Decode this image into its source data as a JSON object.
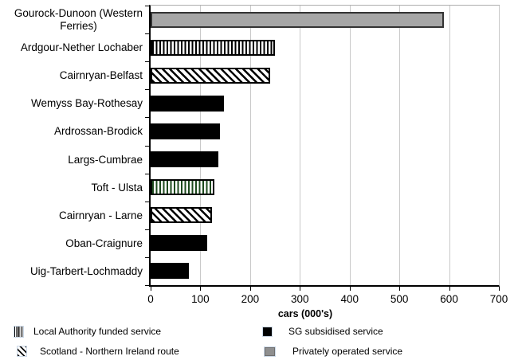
{
  "chart_data": {
    "type": "bar",
    "orientation": "horizontal",
    "title": "",
    "xlabel": "cars (000's)",
    "ylabel": "",
    "xlim": [
      0,
      700
    ],
    "xticks": [
      0,
      100,
      200,
      300,
      400,
      500,
      600,
      700
    ],
    "grid": true,
    "legend_position": "bottom",
    "categories": [
      "Gourock-Dunoon (Western\nFerries)",
      "Ardgour-Nether Lochaber",
      "Cairnryan-Belfast",
      "Wemyss Bay-Rothesay",
      "Ardrossan-Brodick",
      "Largs-Cumbrae",
      "Toft - Ulsta",
      "Cairnryan - Larne",
      "Oban-Craignure",
      "Uig-Tarbert-Lochmaddy"
    ],
    "values": [
      590,
      250,
      240,
      148,
      140,
      136,
      128,
      123,
      114,
      77
    ],
    "bar_styles": [
      "gray",
      "vstripe",
      "dstripe",
      "black",
      "black",
      "black",
      "vstripe-green",
      "dstripe",
      "black",
      "black"
    ],
    "legend": [
      {
        "label": "Local Authority funded service",
        "style": "vstripe"
      },
      {
        "label": "Scotland - Northern Ireland route",
        "style": "dstripe"
      },
      {
        "label": "SG subsidised service",
        "style": "black"
      },
      {
        "label": "Privately operated service",
        "style": "gray"
      }
    ],
    "colors": {
      "sg_subsidised": "#000000",
      "privately_operated": "#a6a6a6",
      "stripe_black": "#000000",
      "stripe_green": "#1d4a1d",
      "gridline": "#c9c9c9"
    }
  }
}
